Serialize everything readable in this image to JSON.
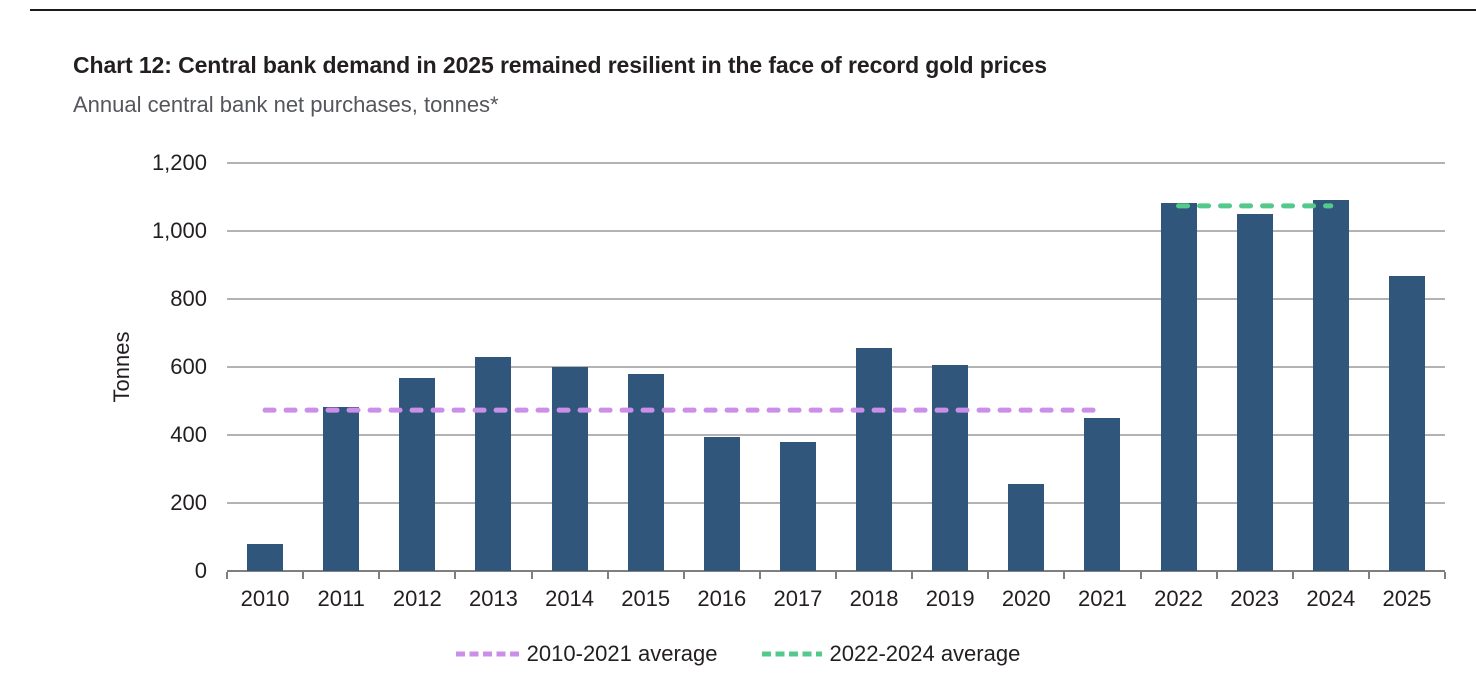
{
  "page": {
    "title": "Chart 12: Central bank demand in 2025 remained resilient in the face of record gold prices",
    "subtitle": "Annual central bank net purchases, tonnes*"
  },
  "chart_data": {
    "type": "bar",
    "title": "Chart 12: Central bank demand in 2025 remained resilient in the face of record gold prices",
    "subtitle": "Annual central bank net purchases, tonnes*",
    "xlabel": "",
    "ylabel": "Tonnes",
    "ylim": [
      0,
      1200
    ],
    "ytick_step": 200,
    "ytick_labels": [
      "0",
      "200",
      "400",
      "600",
      "800",
      "1,000",
      "1,200"
    ],
    "grid": true,
    "legend_position": "bottom",
    "categories": [
      "2010",
      "2011",
      "2012",
      "2013",
      "2014",
      "2015",
      "2016",
      "2017",
      "2018",
      "2019",
      "2020",
      "2021",
      "2022",
      "2023",
      "2024",
      "2025"
    ],
    "values": [
      79,
      481,
      569,
      629,
      601,
      580,
      395,
      379,
      656,
      605,
      255,
      450,
      1082,
      1051,
      1090,
      867
    ],
    "bar_color": "#31567b",
    "gridline_color": "#b3b3b3",
    "axis_color": "#7f7f7f",
    "average_lines": [
      {
        "label": "2010-2021 average",
        "value": 473,
        "from": "2010",
        "to": "2021",
        "color": "#cc8fe9",
        "style": "dashed"
      },
      {
        "label": "2022-2024 average",
        "value": 1074,
        "from": "2022",
        "to": "2024",
        "color": "#53ca8c",
        "style": "dashed"
      }
    ]
  }
}
